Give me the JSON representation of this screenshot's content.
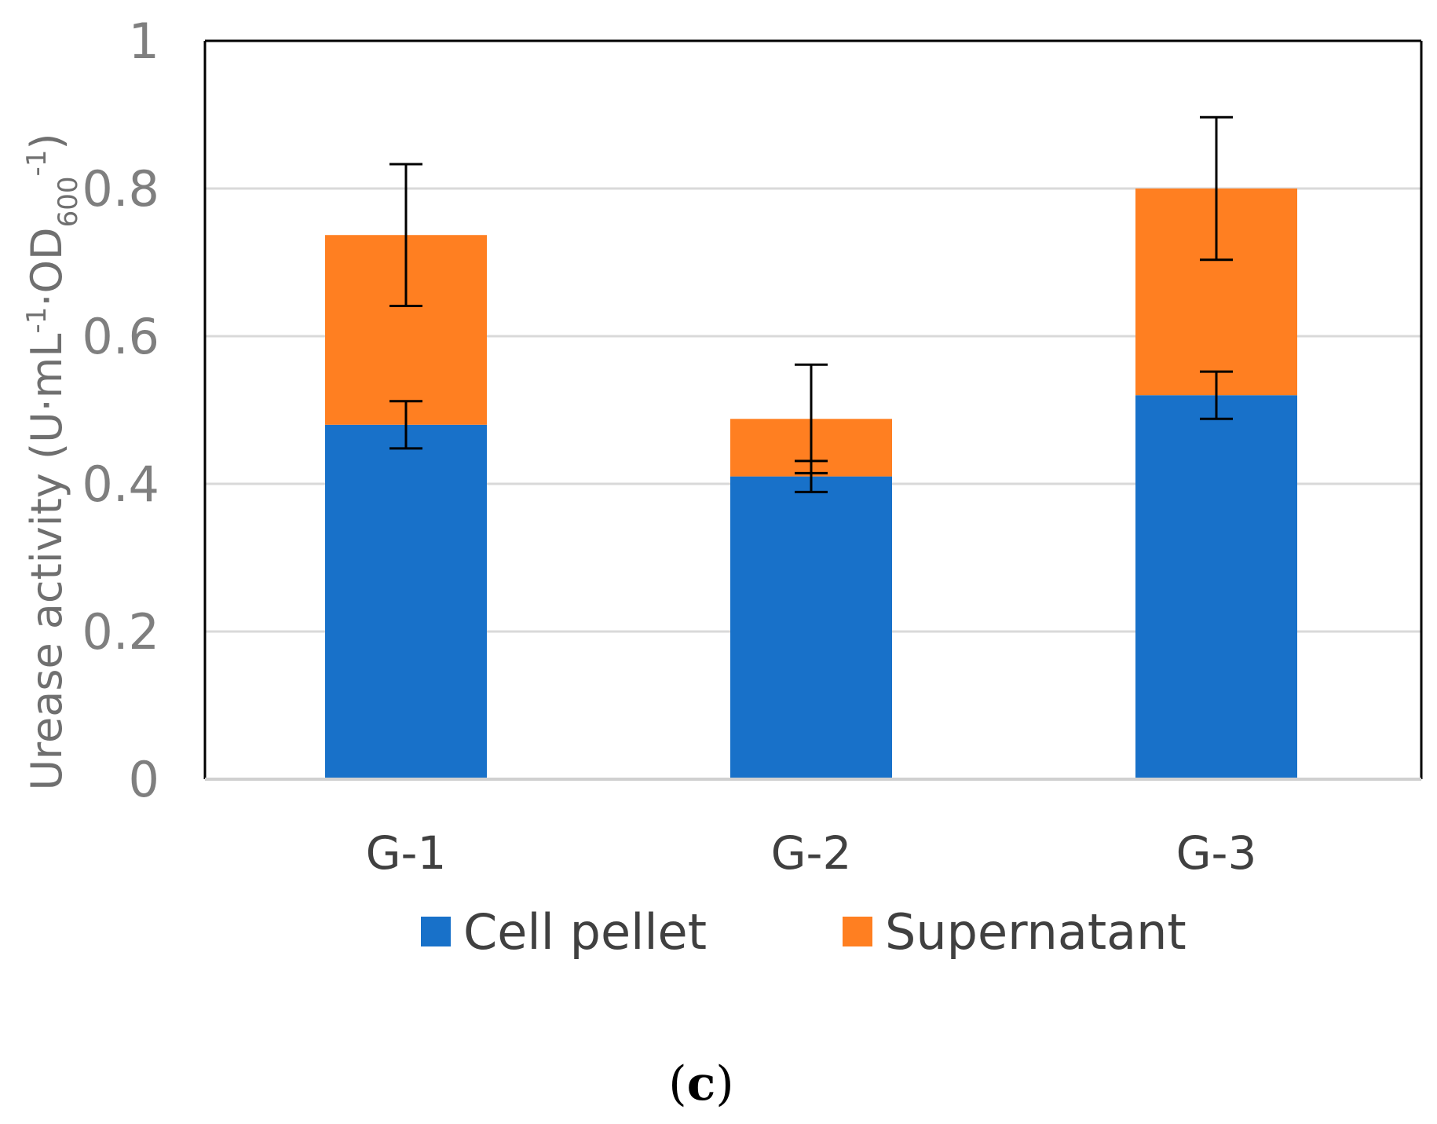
{
  "chart_data": {
    "type": "bar",
    "stacked": true,
    "categories": [
      "G-1",
      "G-2",
      "G-3"
    ],
    "series": [
      {
        "name": "Cell pellet",
        "color": "#1871c9",
        "values": [
          0.48,
          0.41,
          0.52
        ],
        "errors": [
          0.032,
          0.021,
          0.032
        ]
      },
      {
        "name": "Supernatant",
        "color": "#ff7f21",
        "values": [
          0.257,
          0.078,
          0.28
        ],
        "errors": [
          0.096,
          0.0735,
          0.0965
        ]
      }
    ],
    "ylim": [
      0,
      1
    ],
    "yticks": [
      "0",
      "0.2",
      "0.4",
      "0.6",
      "0.8",
      "1"
    ],
    "ytick_values": [
      0,
      0.2,
      0.4,
      0.6,
      0.8,
      1
    ],
    "ylabel": "Urease activity (U·mL-1·OD600-1)",
    "ylabel_parts": {
      "main": "Urease activity (U·mL",
      "sup1": "-1",
      "mid": "·OD",
      "sub": "600",
      "sup2": "-1",
      "end": ")"
    },
    "xlabel": "",
    "title": "",
    "grid": true,
    "legend_position": "bottom"
  },
  "panel_label": {
    "open": "(",
    "letter": "c",
    "close": ")"
  }
}
